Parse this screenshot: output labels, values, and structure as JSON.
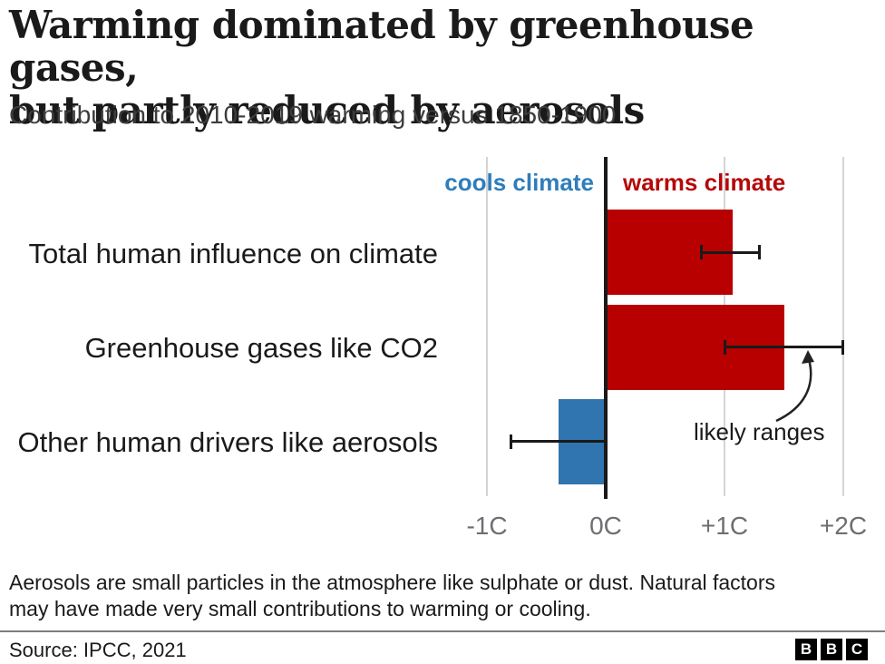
{
  "header": {
    "title_lines": [
      "Warming dominated by greenhouse gases,",
      "but partly reduced by aerosols"
    ],
    "subtitle": "Contribution to 2010-2019 warming versus 1850-1900"
  },
  "chart_data": {
    "type": "bar",
    "orientation": "horizontal",
    "title": "Contribution to 2010-2019 warming versus 1850-1900",
    "grid": true,
    "xlim": [
      -1.3,
      2.35
    ],
    "x_ticks": [
      {
        "value": -1,
        "label": "-1C"
      },
      {
        "value": 0,
        "label": "0C"
      },
      {
        "value": 1,
        "label": "+1C"
      },
      {
        "value": 2,
        "label": "+2C"
      }
    ],
    "bars": [
      {
        "category": "Total human influence on climate",
        "value": 1.07,
        "likely_range": [
          0.8,
          1.3
        ],
        "color": "#b80000"
      },
      {
        "category": "Greenhouse gases like CO2",
        "value": 1.5,
        "likely_range": [
          1.0,
          2.0
        ],
        "color": "#b80000"
      },
      {
        "category": "Other human drivers like aerosols",
        "value": -0.4,
        "likely_range": [
          -0.8,
          0.0
        ],
        "color": "#3075af"
      }
    ],
    "region_labels": {
      "cools": "cools climate",
      "warms": "warms climate"
    },
    "annotation_label": "likely ranges"
  },
  "footnote_lines": [
    "Aerosols are small particles in the atmosphere like sulphate or dust. Natural factors",
    "may have made very small contributions to warming or cooling."
  ],
  "source": "Source: IPCC, 2021",
  "logo_letters": {
    "b1": "B",
    "b2": "B",
    "b3": "C"
  },
  "palette": {
    "warm_bar": "#b80000",
    "cool_bar": "#3075af",
    "warm_text": "#b50909",
    "cool_text": "#2e7dbb",
    "grid": "#d4d4d4",
    "axis": "#1a1a1a",
    "tick_text": "#6e6e73",
    "text": "#1a1a1a",
    "subtitle_text": "#3d3d3d",
    "divider": "#7d7d7d"
  }
}
